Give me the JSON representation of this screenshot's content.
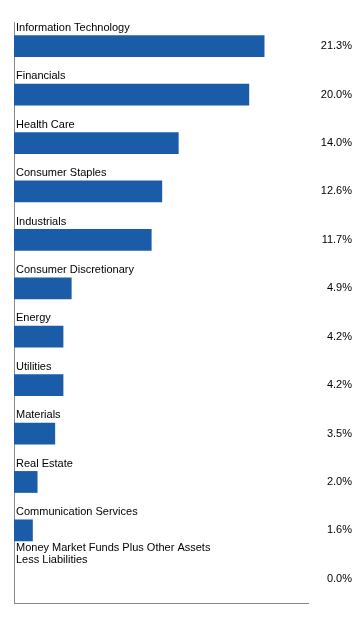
{
  "chart_data": {
    "type": "bar",
    "orientation": "horizontal",
    "categories": [
      "Information Technology",
      "Financials",
      "Health Care",
      "Consumer Staples",
      "Industrials",
      "Consumer Discretionary",
      "Energy",
      "Utilities",
      "Materials",
      "Real Estate",
      "Communication Services",
      "Money Market Funds Plus Other Assets\nLess Liabilities"
    ],
    "values": [
      21.3,
      20.0,
      14.0,
      12.6,
      11.7,
      4.9,
      4.2,
      4.2,
      3.5,
      2.0,
      1.6,
      0.0
    ],
    "value_labels": [
      "21.3%",
      "20.0%",
      "14.0%",
      "12.6%",
      "11.7%",
      "4.9%",
      "4.2%",
      "4.2%",
      "3.5%",
      "2.0%",
      "1.6%",
      "0.0%"
    ],
    "data_labels": true,
    "color": "#1A5CA8",
    "xlim": [
      0,
      25
    ],
    "xticks": [],
    "tick_labels": "y",
    "grid": false
  }
}
